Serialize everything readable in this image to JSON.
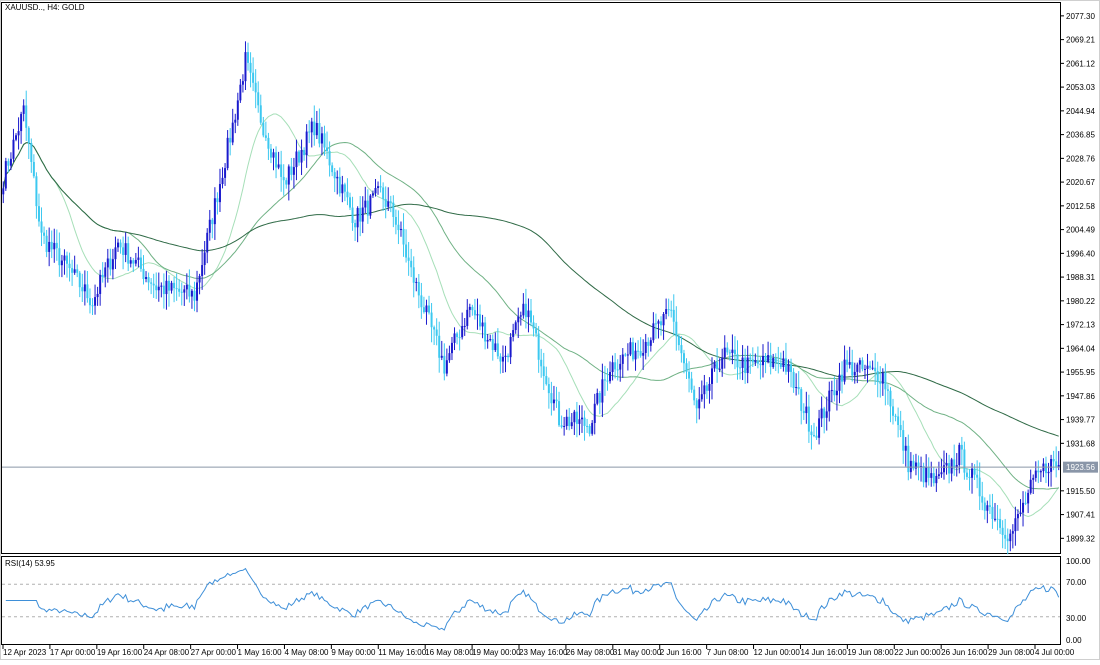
{
  "main": {
    "symbol_label": "XAUUSD.., H4:  GOLD",
    "current_price_label": "1923.56"
  },
  "rsi": {
    "label": "RSI(14) 53.95",
    "levels": [
      "100.00",
      "70.00",
      "30.00",
      "0.00"
    ]
  },
  "colors": {
    "bull_candle": "#1a1acd",
    "bear_candle": "#3cc8f0",
    "ma_fast": "#a6dfb8",
    "ma_mid": "#6fb184",
    "ma_slow": "#2f6a46",
    "rsi_line": "#3e8fd8",
    "price_line": "#8a96a8"
  },
  "chart_data": [
    {
      "type": "candlestick",
      "name": "",
      "title": "XAUUSD.., H4:  GOLD",
      "y_tick_labels": [
        "2077.30",
        "2069.21",
        "2061.12",
        "2053.03",
        "2044.94",
        "2036.85",
        "2028.76",
        "2020.67",
        "2012.58",
        "2004.49",
        "1996.40",
        "1988.31",
        "1980.22",
        "1972.13",
        "1964.04",
        "1955.95",
        "1947.86",
        "1939.77",
        "1931.68",
        "1923.56",
        "1915.50",
        "1907.41",
        "1899.32"
      ],
      "ylim": [
        1895,
        2081
      ],
      "x_tick_labels": [
        "12 Apr 2023",
        "17 Apr 00:00",
        "19 Apr 16:00",
        "24 Apr 08:00",
        "27 Apr 00:00",
        "1 May 16:00",
        "4 May 08:00",
        "9 May 00:00",
        "11 May 16:00",
        "16 May 08:00",
        "19 May 00:00",
        "23 May 16:00",
        "26 May 08:00",
        "31 May 00:00",
        "2 Jun 16:00",
        "7 Jun 08:00",
        "12 Jun 00:00",
        "14 Jun 16:00",
        "19 Jun 08:00",
        "22 Jun 00:00",
        "26 Jun 16:00",
        "29 Jun 08:00",
        "4 Jul 00:00"
      ],
      "current_price": 1923.56,
      "key_closes": [
        {
          "t": 0,
          "v": 2022
        },
        {
          "t": 8,
          "v": 2045
        },
        {
          "t": 15,
          "v": 2002
        },
        {
          "t": 22,
          "v": 1995
        },
        {
          "t": 35,
          "v": 1980
        },
        {
          "t": 45,
          "v": 2000
        },
        {
          "t": 60,
          "v": 1985
        },
        {
          "t": 75,
          "v": 1982
        },
        {
          "t": 90,
          "v": 2040
        },
        {
          "t": 95,
          "v": 2062
        },
        {
          "t": 100,
          "v": 2045
        },
        {
          "t": 110,
          "v": 2020
        },
        {
          "t": 122,
          "v": 2040
        },
        {
          "t": 128,
          "v": 2028
        },
        {
          "t": 138,
          "v": 2008
        },
        {
          "t": 148,
          "v": 2017
        },
        {
          "t": 154,
          "v": 2008
        },
        {
          "t": 160,
          "v": 1990
        },
        {
          "t": 173,
          "v": 1958
        },
        {
          "t": 183,
          "v": 1978
        },
        {
          "t": 196,
          "v": 1960
        },
        {
          "t": 205,
          "v": 1978
        },
        {
          "t": 218,
          "v": 1940
        },
        {
          "t": 230,
          "v": 1938
        },
        {
          "t": 238,
          "v": 1958
        },
        {
          "t": 250,
          "v": 1965
        },
        {
          "t": 262,
          "v": 1976
        },
        {
          "t": 272,
          "v": 1942
        },
        {
          "t": 282,
          "v": 1962
        },
        {
          "t": 292,
          "v": 1958
        },
        {
          "t": 306,
          "v": 1960
        },
        {
          "t": 318,
          "v": 1935
        },
        {
          "t": 330,
          "v": 1958
        },
        {
          "t": 345,
          "v": 1955
        },
        {
          "t": 355,
          "v": 1925
        },
        {
          "t": 366,
          "v": 1918
        },
        {
          "t": 375,
          "v": 1928
        },
        {
          "t": 385,
          "v": 1912
        },
        {
          "t": 395,
          "v": 1900
        },
        {
          "t": 404,
          "v": 1918
        },
        {
          "t": 410,
          "v": 1925
        },
        {
          "t": 414,
          "v": 1924
        }
      ],
      "moving_averages": [
        {
          "name": "",
          "period": 20,
          "color": "#a6dfb8"
        },
        {
          "name": "",
          "period": 50,
          "color": "#6fb184"
        },
        {
          "name": "",
          "period": 120,
          "color": "#2f6a46"
        }
      ],
      "grid": false
    },
    {
      "type": "line",
      "name": "",
      "title": "RSI(14) 53.95",
      "ylim": [
        0,
        100
      ],
      "levels": [
        70,
        30
      ],
      "last_value": 53.95
    }
  ]
}
